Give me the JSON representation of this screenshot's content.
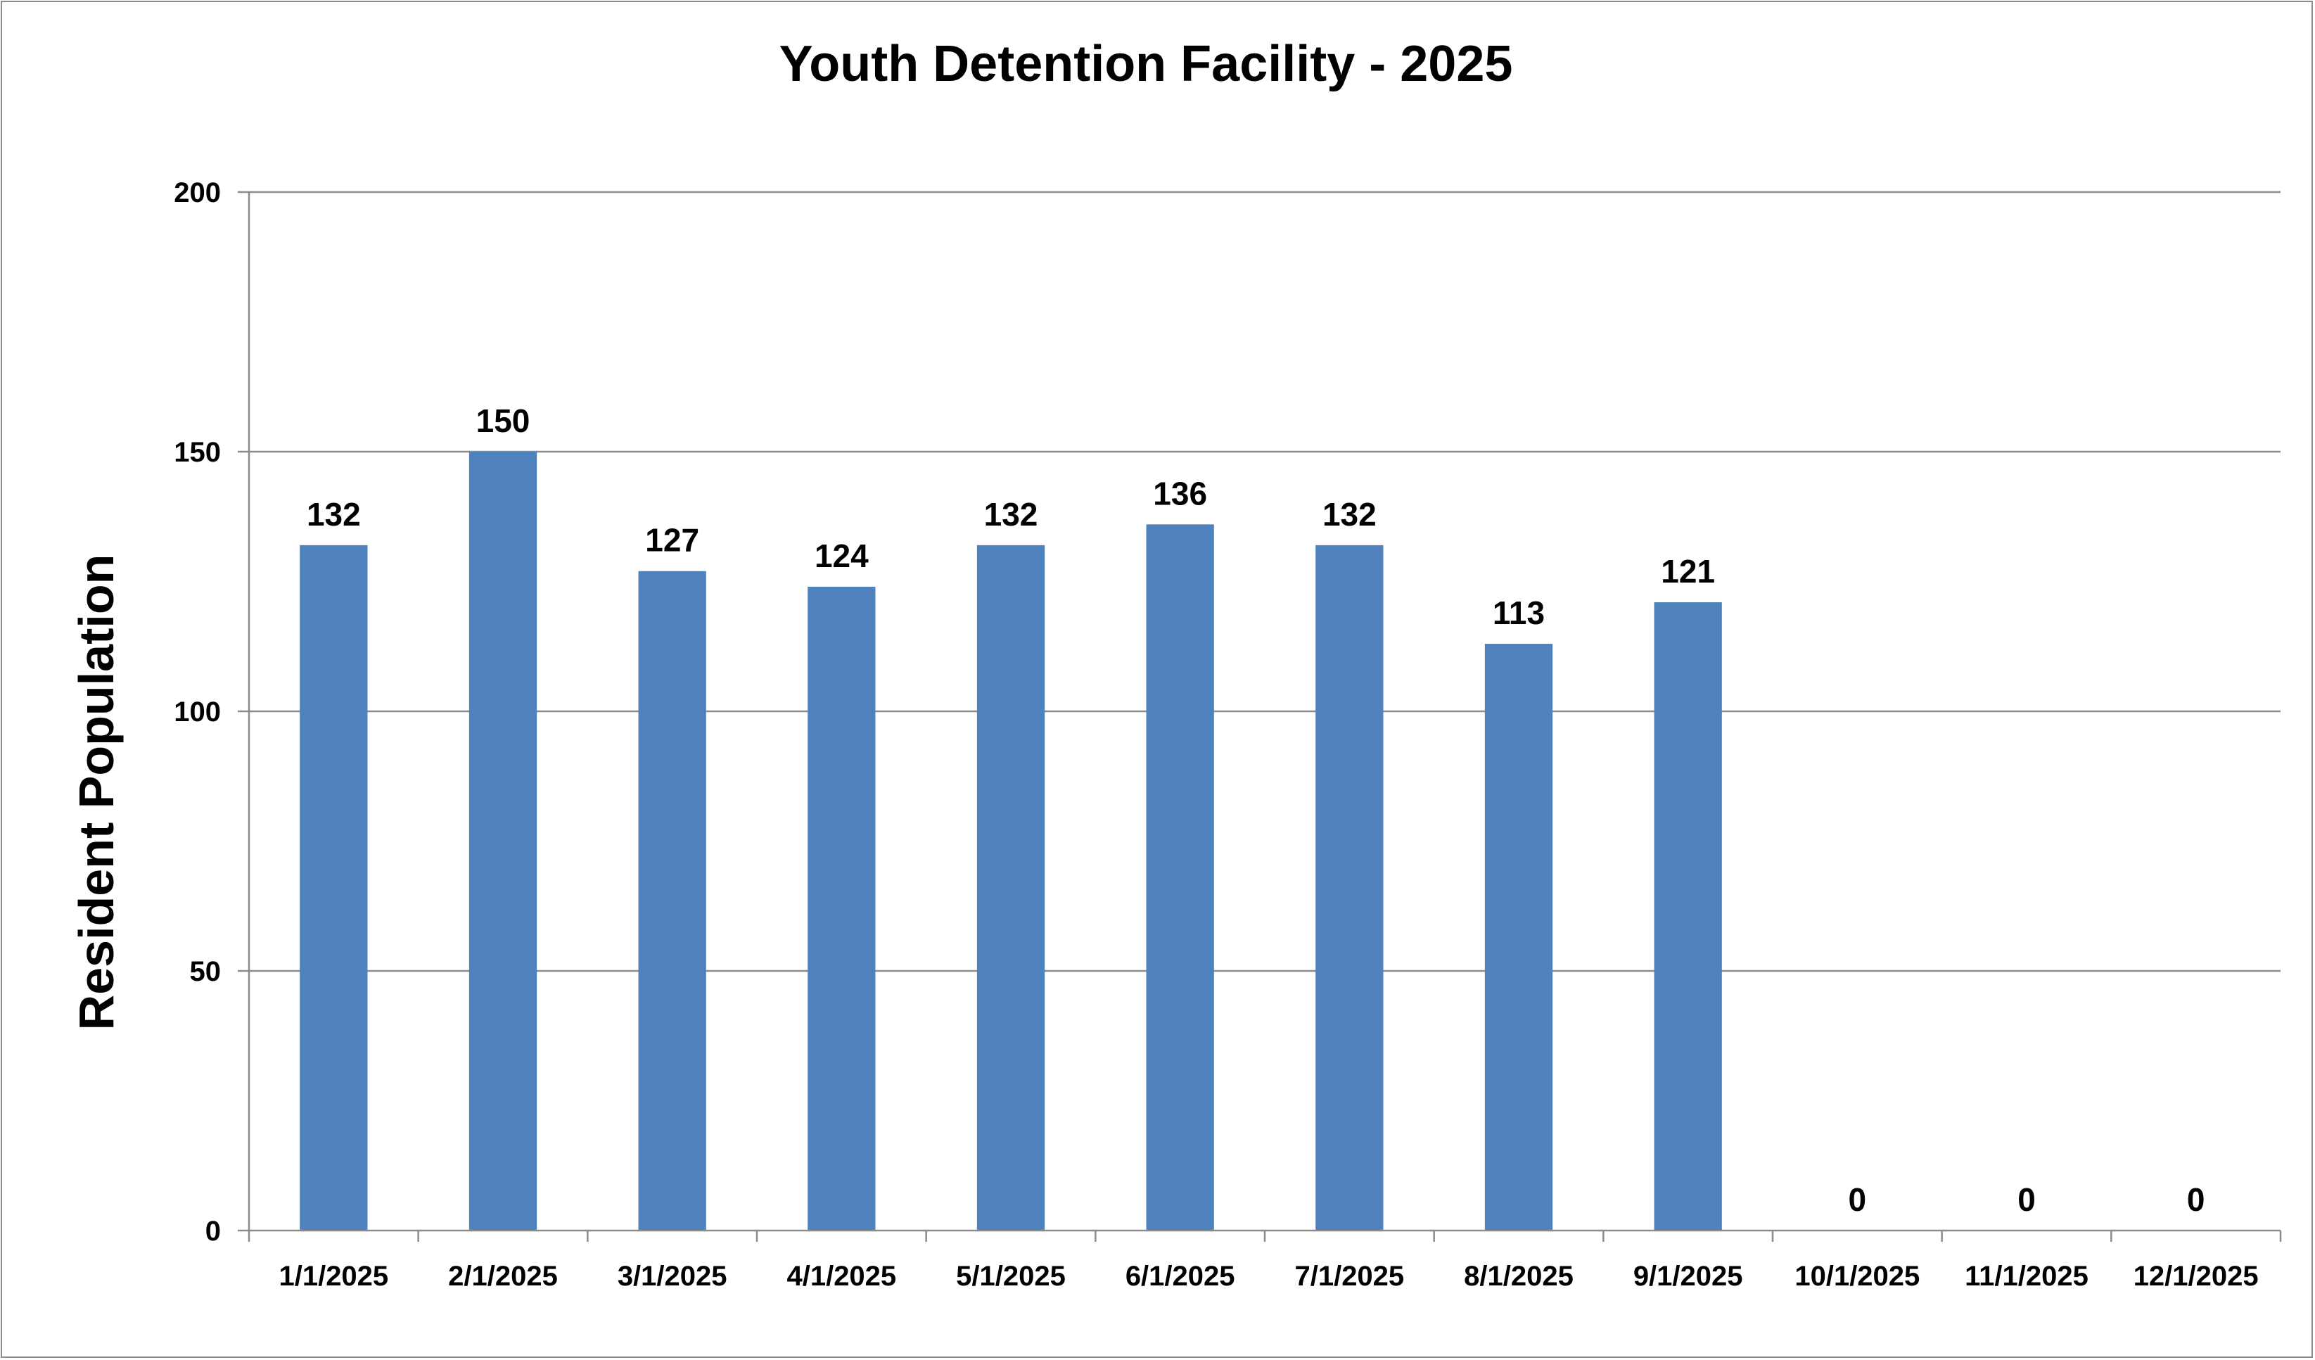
{
  "chart_data": {
    "type": "bar",
    "title": "Youth Detention Facility - 2025",
    "xlabel": "",
    "ylabel": "Resident Population",
    "categories": [
      "1/1/2025",
      "2/1/2025",
      "3/1/2025",
      "4/1/2025",
      "5/1/2025",
      "6/1/2025",
      "7/1/2025",
      "8/1/2025",
      "9/1/2025",
      "10/1/2025",
      "11/1/2025",
      "12/1/2025"
    ],
    "values": [
      132,
      150,
      127,
      124,
      132,
      136,
      132,
      113,
      121,
      0,
      0,
      0
    ],
    "ylim": [
      0,
      200
    ],
    "yticks": [
      0,
      50,
      100,
      150,
      200
    ],
    "grid": true,
    "legend": "none",
    "data_labels": true,
    "bar_color": "#4f81bd"
  }
}
